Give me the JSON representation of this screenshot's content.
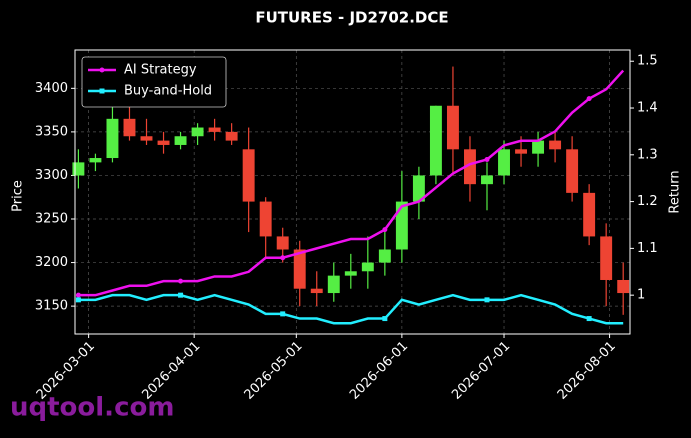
{
  "chart_data": {
    "type": "candlestick",
    "title": "FUTURES - JD2702.DCE",
    "y_label": "Price",
    "y2_label": "Return",
    "watermark": "uqtool.com",
    "x": [
      "2026-02-26",
      "2026-03-03",
      "2026-03-08",
      "2026-03-13",
      "2026-03-18",
      "2026-03-23",
      "2026-03-28",
      "2026-04-02",
      "2026-04-07",
      "2026-04-12",
      "2026-04-17",
      "2026-04-22",
      "2026-04-27",
      "2026-05-02",
      "2026-05-07",
      "2026-05-12",
      "2026-05-17",
      "2026-05-22",
      "2026-05-27",
      "2026-06-01",
      "2026-06-06",
      "2026-06-11",
      "2026-06-16",
      "2026-06-21",
      "2026-06-26",
      "2026-07-01",
      "2026-07-06",
      "2026-07-11",
      "2026-07-16",
      "2026-07-21",
      "2026-07-26",
      "2026-07-31",
      "2026-08-05"
    ],
    "open": [
      3300,
      3315,
      3320,
      3365,
      3345,
      3340,
      3335,
      3345,
      3355,
      3350,
      3330,
      3270,
      3230,
      3215,
      3170,
      3165,
      3185,
      3190,
      3200,
      3215,
      3270,
      3300,
      3380,
      3330,
      3290,
      3300,
      3330,
      3325,
      3340,
      3330,
      3280,
      3230,
      3180
    ],
    "high": [
      3330,
      3325,
      3385,
      3390,
      3365,
      3350,
      3350,
      3360,
      3365,
      3360,
      3355,
      3275,
      3240,
      3225,
      3190,
      3200,
      3210,
      3230,
      3240,
      3305,
      3310,
      3380,
      3425,
      3345,
      3315,
      3340,
      3345,
      3350,
      3350,
      3345,
      3290,
      3245,
      3200
    ],
    "low": [
      3285,
      3305,
      3315,
      3340,
      3335,
      3325,
      3330,
      3335,
      3340,
      3335,
      3235,
      3205,
      3200,
      3150,
      3150,
      3155,
      3170,
      3170,
      3185,
      3200,
      3250,
      3290,
      3300,
      3270,
      3260,
      3290,
      3310,
      3310,
      3315,
      3270,
      3220,
      3150,
      3140
    ],
    "close": [
      3315,
      3320,
      3365,
      3345,
      3340,
      3335,
      3345,
      3355,
      3350,
      3340,
      3270,
      3230,
      3215,
      3170,
      3165,
      3185,
      3190,
      3200,
      3215,
      3270,
      3300,
      3380,
      3330,
      3290,
      3300,
      3330,
      3325,
      3340,
      3330,
      3280,
      3230,
      3180,
      3165
    ],
    "up_color": "#55ee44",
    "down_color": "#ee4433",
    "series": [
      {
        "name": "AI Strategy",
        "color": "#ee11ee",
        "axis": "y2",
        "values": [
          1.0,
          1.0,
          1.01,
          1.02,
          1.02,
          1.03,
          1.03,
          1.03,
          1.04,
          1.04,
          1.05,
          1.08,
          1.08,
          1.09,
          1.1,
          1.11,
          1.12,
          1.12,
          1.14,
          1.19,
          1.2,
          1.23,
          1.26,
          1.28,
          1.29,
          1.32,
          1.33,
          1.33,
          1.35,
          1.39,
          1.42,
          1.44,
          1.48
        ]
      },
      {
        "name": "Buy-and-Hold",
        "color": "#22eeff",
        "axis": "y2",
        "values": [
          0.99,
          0.99,
          1.0,
          1.0,
          0.99,
          1.0,
          1.0,
          0.99,
          1.0,
          0.99,
          0.98,
          0.96,
          0.96,
          0.95,
          0.95,
          0.94,
          0.94,
          0.95,
          0.95,
          0.99,
          0.98,
          0.99,
          1.0,
          0.99,
          0.99,
          0.99,
          1.0,
          0.99,
          0.98,
          0.96,
          0.95,
          0.94,
          0.94
        ]
      }
    ],
    "xlim": [
      "2026-02-25",
      "2026-08-07"
    ],
    "xticks": [
      "2026-03-01",
      "2026-04-01",
      "2026-05-01",
      "2026-06-01",
      "2026-07-01",
      "2026-08-01"
    ],
    "ylim": [
      3118,
      3444
    ],
    "yticks": [
      3150,
      3200,
      3250,
      3300,
      3350,
      3400
    ],
    "y2lim": [
      0.917,
      1.524
    ],
    "y2ticks": [
      1.0,
      1.1,
      1.2,
      1.3,
      1.4,
      1.5
    ],
    "grid": true,
    "legend": "upper left"
  }
}
